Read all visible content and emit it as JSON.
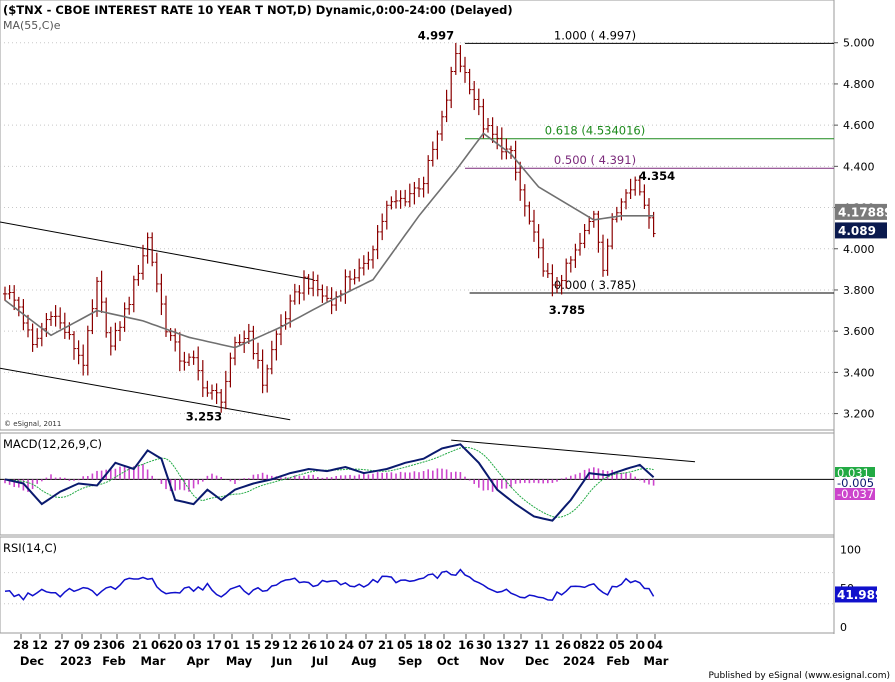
{
  "header": {
    "title": "($TNX - CBOE INTEREST RATE 10 YEAR T NOT,D) Dynamic,0:00-24:00 (Delayed)",
    "ma_label": "MA(55,C)e",
    "copyright": "© eSignal, 2011",
    "footer": "Published by eSignal (www.esignal.com)"
  },
  "colors": {
    "price": "#8b0000",
    "ma": "#707070",
    "macd": "#0a1a6e",
    "signal": "#22aa44",
    "hist": "#cc44cc",
    "rsi": "#1010cc",
    "fib_1": "#000000",
    "fib_618": "#1c8a1c",
    "fib_500": "#7b2a7b",
    "grid": "#c8c8c8"
  },
  "chart_data": [
    {
      "type": "line",
      "name": "price",
      "ylim": [
        3.13,
        5.12
      ],
      "ticks": [
        5.0,
        4.8,
        4.6,
        4.4,
        4.2,
        4.0,
        3.8,
        3.6,
        3.4,
        3.2
      ],
      "tick_labels": [
        "5.000",
        "4.800",
        "4.600",
        "4.400",
        "4.200",
        "4.000",
        "3.800",
        "3.600",
        "3.400",
        "3.200"
      ],
      "anchors": [
        [
          0,
          3.8
        ],
        [
          3,
          3.72
        ],
        [
          6,
          3.52
        ],
        [
          10,
          3.7
        ],
        [
          13,
          3.6
        ],
        [
          17,
          3.45
        ],
        [
          20,
          3.82
        ],
        [
          23,
          3.52
        ],
        [
          27,
          3.75
        ],
        [
          31,
          4.05
        ],
        [
          35,
          3.62
        ],
        [
          38,
          3.47
        ],
        [
          41,
          3.45
        ],
        [
          44,
          3.3
        ],
        [
          47,
          3.28
        ],
        [
          50,
          3.52
        ],
        [
          53,
          3.6
        ],
        [
          56,
          3.35
        ],
        [
          59,
          3.58
        ],
        [
          62,
          3.72
        ],
        [
          65,
          3.85
        ],
        [
          68,
          3.8
        ],
        [
          71,
          3.73
        ],
        [
          74,
          3.85
        ],
        [
          78,
          3.9
        ],
        [
          83,
          4.2
        ],
        [
          87,
          4.25
        ],
        [
          91,
          4.33
        ],
        [
          95,
          4.62
        ],
        [
          98,
          4.95
        ],
        [
          101,
          4.8
        ],
        [
          104,
          4.6
        ],
        [
          107,
          4.52
        ],
        [
          110,
          4.45
        ],
        [
          113,
          4.2
        ],
        [
          116,
          3.98
        ],
        [
          119,
          3.8
        ],
        [
          122,
          3.9
        ],
        [
          125,
          4.02
        ],
        [
          128,
          4.18
        ],
        [
          130,
          3.92
        ],
        [
          132,
          4.12
        ],
        [
          135,
          4.3
        ],
        [
          137,
          4.33
        ],
        [
          139,
          4.22
        ],
        [
          141,
          4.1
        ]
      ],
      "last_value": "4.089",
      "ma_last": "4.178897",
      "ma_anchors": [
        [
          0,
          3.75
        ],
        [
          10,
          3.58
        ],
        [
          20,
          3.7
        ],
        [
          30,
          3.65
        ],
        [
          40,
          3.57
        ],
        [
          50,
          3.52
        ],
        [
          60,
          3.62
        ],
        [
          70,
          3.74
        ],
        [
          80,
          3.85
        ],
        [
          90,
          4.16
        ],
        [
          98,
          4.38
        ],
        [
          104,
          4.56
        ],
        [
          110,
          4.46
        ],
        [
          116,
          4.3
        ],
        [
          122,
          4.22
        ],
        [
          128,
          4.14
        ],
        [
          134,
          4.16
        ],
        [
          141,
          4.16
        ]
      ]
    },
    {
      "type": "line",
      "name": "MACD(12,26,9,C)",
      "ylim": [
        -0.26,
        0.21
      ],
      "macd_anchors": [
        [
          0,
          0.0
        ],
        [
          4,
          -0.02
        ],
        [
          8,
          -0.12
        ],
        [
          12,
          -0.06
        ],
        [
          16,
          -0.02
        ],
        [
          20,
          -0.03
        ],
        [
          24,
          0.08
        ],
        [
          28,
          0.05
        ],
        [
          31,
          0.14
        ],
        [
          34,
          0.1
        ],
        [
          37,
          -0.1
        ],
        [
          41,
          -0.12
        ],
        [
          44,
          -0.05
        ],
        [
          47,
          -0.1
        ],
        [
          50,
          -0.05
        ],
        [
          54,
          -0.02
        ],
        [
          58,
          0.0
        ],
        [
          62,
          0.03
        ],
        [
          66,
          0.05
        ],
        [
          70,
          0.04
        ],
        [
          74,
          0.06
        ],
        [
          78,
          0.03
        ],
        [
          83,
          0.05
        ],
        [
          87,
          0.08
        ],
        [
          91,
          0.1
        ],
        [
          95,
          0.15
        ],
        [
          99,
          0.17
        ],
        [
          103,
          0.08
        ],
        [
          107,
          -0.05
        ],
        [
          111,
          -0.12
        ],
        [
          115,
          -0.18
        ],
        [
          119,
          -0.2
        ],
        [
          123,
          -0.1
        ],
        [
          127,
          0.03
        ],
        [
          131,
          0.02
        ],
        [
          135,
          0.05
        ],
        [
          138,
          0.07
        ],
        [
          141,
          0.01
        ]
      ],
      "hist_anchors": [
        [
          0,
          -0.02
        ],
        [
          5,
          -0.06
        ],
        [
          10,
          0.02
        ],
        [
          15,
          -0.01
        ],
        [
          20,
          0.04
        ],
        [
          25,
          0.06
        ],
        [
          30,
          0.07
        ],
        [
          35,
          -0.05
        ],
        [
          40,
          -0.06
        ],
        [
          45,
          0.03
        ],
        [
          50,
          -0.02
        ],
        [
          55,
          0.03
        ],
        [
          60,
          0.01
        ],
        [
          65,
          0.02
        ],
        [
          70,
          0.01
        ],
        [
          75,
          0.02
        ],
        [
          80,
          0.03
        ],
        [
          85,
          0.03
        ],
        [
          90,
          0.04
        ],
        [
          95,
          0.05
        ],
        [
          99,
          0.03
        ],
        [
          104,
          -0.06
        ],
        [
          108,
          -0.05
        ],
        [
          112,
          -0.02
        ],
        [
          116,
          -0.02
        ],
        [
          120,
          -0.01
        ],
        [
          124,
          0.03
        ],
        [
          128,
          0.06
        ],
        [
          132,
          0.04
        ],
        [
          136,
          0.03
        ],
        [
          140,
          -0.03
        ]
      ],
      "labels": [
        {
          "text": "0.031",
          "value": 0.031,
          "color": "#22aa44"
        },
        {
          "text": "-0.005",
          "value": -0.005,
          "color": "#0a1a6e"
        },
        {
          "text": "-0.037",
          "value": -0.037,
          "color": "#cc44cc"
        }
      ]
    },
    {
      "type": "line",
      "name": "RSI(14,C)",
      "ylim": [
        -5,
        112
      ],
      "ticks": [
        100,
        50,
        0
      ],
      "tick_labels": [
        "100",
        "50",
        "0"
      ],
      "anchors": [
        [
          0,
          45
        ],
        [
          4,
          38
        ],
        [
          8,
          48
        ],
        [
          12,
          42
        ],
        [
          16,
          50
        ],
        [
          20,
          44
        ],
        [
          24,
          52
        ],
        [
          28,
          62
        ],
        [
          31,
          65
        ],
        [
          35,
          42
        ],
        [
          40,
          48
        ],
        [
          44,
          52
        ],
        [
          47,
          38
        ],
        [
          50,
          55
        ],
        [
          53,
          44
        ],
        [
          56,
          48
        ],
        [
          59,
          55
        ],
        [
          63,
          62
        ],
        [
          67,
          55
        ],
        [
          71,
          58
        ],
        [
          75,
          53
        ],
        [
          79,
          56
        ],
        [
          83,
          64
        ],
        [
          87,
          57
        ],
        [
          91,
          62
        ],
        [
          95,
          68
        ],
        [
          99,
          70
        ],
        [
          103,
          55
        ],
        [
          107,
          48
        ],
        [
          111,
          43
        ],
        [
          115,
          40
        ],
        [
          119,
          38
        ],
        [
          123,
          52
        ],
        [
          127,
          55
        ],
        [
          131,
          44
        ],
        [
          135,
          62
        ],
        [
          138,
          58
        ],
        [
          141,
          42
        ]
      ],
      "last_value": "41.989"
    }
  ],
  "x_axis": {
    "days": [
      "28",
      "12",
      "27",
      "09",
      "23",
      "06",
      "21",
      "06",
      "20",
      "03",
      "17",
      "01",
      "15",
      "29",
      "12",
      "26",
      "10",
      "24",
      "07",
      "21",
      "05",
      "18",
      "02",
      "16",
      "30",
      "13",
      "27",
      "11",
      "26",
      "08",
      "22",
      "05",
      "20",
      "04"
    ],
    "months": [
      "Dec",
      "2023",
      "Feb",
      "Mar",
      "Apr",
      "May",
      "Jun",
      "Jul",
      "Aug",
      "Sep",
      "Oct",
      "Nov",
      "Dec",
      "2024",
      "Feb",
      "Mar"
    ]
  },
  "annotations": {
    "high": "4.997",
    "low": "3.785",
    "left_low": "3.253",
    "recent_high": "4.354",
    "fib_1": "1.000 ( 4.997)",
    "fib_618": "0.618 (4.534016)",
    "fib_500": "0.500 ( 4.391)",
    "fib_0": "0.000 ( 3.785)"
  }
}
